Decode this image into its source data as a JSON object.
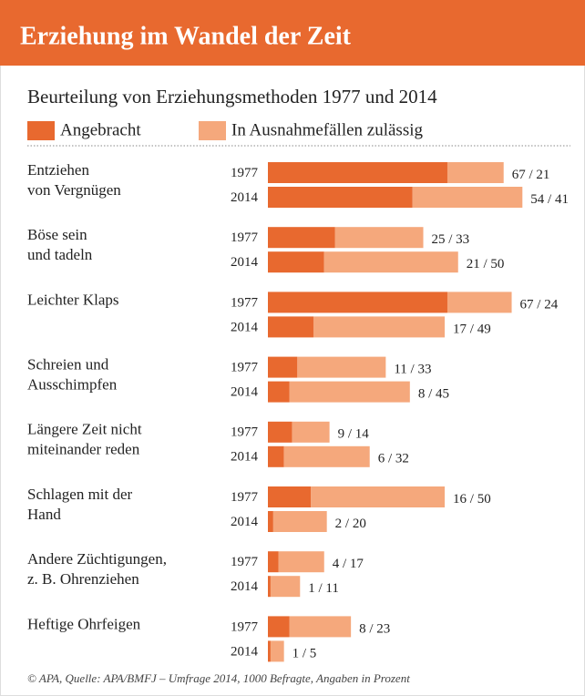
{
  "chart_data": {
    "type": "bar",
    "title": "Erziehung im Wandel der Zeit",
    "subtitle": "Beurteilung von Erziehungsmethoden 1977 und 2014",
    "series": [
      {
        "name": "Angebracht",
        "color": "#e8692f",
        "values": [
          [
            67,
            54
          ],
          [
            25,
            21
          ],
          [
            67,
            17
          ],
          [
            11,
            8
          ],
          [
            9,
            6
          ],
          [
            16,
            2
          ],
          [
            4,
            1
          ],
          [
            8,
            1
          ]
        ]
      },
      {
        "name": "In Ausnahmefällen zulässig",
        "color": "#f5a87c",
        "values": [
          [
            21,
            41
          ],
          [
            33,
            50
          ],
          [
            24,
            49
          ],
          [
            33,
            45
          ],
          [
            14,
            32
          ],
          [
            50,
            20
          ],
          [
            17,
            11
          ],
          [
            23,
            5
          ]
        ]
      }
    ],
    "categories": [
      [
        "Entziehen",
        "von Vergnügen"
      ],
      [
        "Böse sein",
        "und tadeln"
      ],
      [
        "Leichter Klaps"
      ],
      [
        "Schreien und",
        "Ausschimpfen"
      ],
      [
        "Längere Zeit nicht",
        "miteinander reden"
      ],
      [
        "Schlagen mit der",
        "Hand"
      ],
      [
        "Andere Züchtigungen,",
        "z. B. Ohrenziehen"
      ],
      [
        "Heftige Ohrfeigen"
      ]
    ],
    "years": [
      "1977",
      "2014"
    ],
    "value_labels": [
      [
        "67 / 21",
        "54 / 41"
      ],
      [
        "25 / 33",
        "21 / 50"
      ],
      [
        "67 / 24",
        "17 / 49"
      ],
      [
        "11 / 33",
        "8 / 45"
      ],
      [
        "9 / 14",
        "6 / 32"
      ],
      [
        "16 / 50",
        "2 / 20"
      ],
      [
        "4 / 17",
        "1 / 11"
      ],
      [
        "8 / 23",
        "1 / 5"
      ]
    ],
    "source": "© APA, Quelle: APA/BMFJ – Umfrage 2014, 1000 Befragte, Angaben in Prozent"
  }
}
